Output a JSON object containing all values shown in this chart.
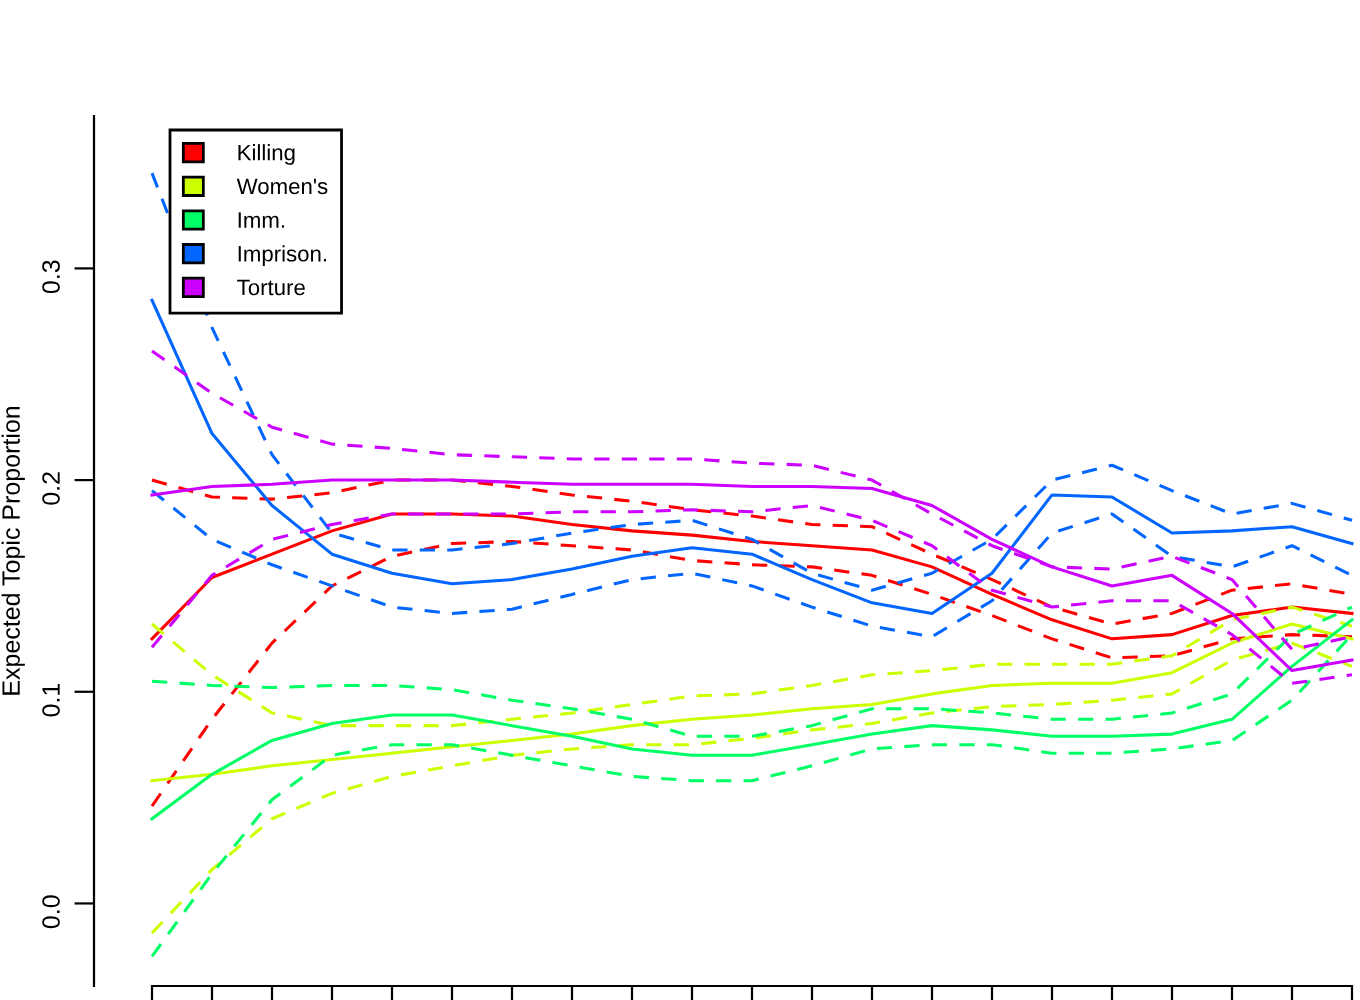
{
  "chart_data": {
    "type": "line",
    "ylabel": "Expected Topic Proportion",
    "categories": [
      null,
      null,
      null,
      null,
      null,
      null,
      null,
      null,
      null,
      null,
      null,
      null,
      null,
      null,
      null,
      null,
      null,
      null,
      null,
      null,
      null
    ],
    "ylim": [
      -0.039,
      0.372
    ],
    "yticks": [
      {
        "value": 0,
        "label": "0.0"
      },
      0.1,
      0.2,
      0.3
    ],
    "tick_labels": "y",
    "legend": "top left",
    "grid": false,
    "line_style": "solid",
    "marker": "none",
    "series": [
      {
        "name": "Killing",
        "color": "#ff0000",
        "values": [
          0.125,
          0.154,
          0.165,
          0.176,
          0.184,
          0.184,
          0.183,
          0.179,
          0.176,
          0.174,
          0.171,
          0.169,
          0.167,
          0.159,
          0.146,
          0.134,
          0.125,
          0.127,
          0.136,
          0.14,
          0.137
        ]
      },
      {
        "color": "#ff0000",
        "line_style": "dashed",
        "values": [
          0.2,
          0.192,
          0.191,
          0.194,
          0.2,
          0.2,
          0.197,
          0.193,
          0.19,
          0.186,
          0.183,
          0.179,
          0.178,
          0.165,
          0.153,
          0.14,
          0.132,
          0.137,
          0.148,
          0.151,
          0.146
        ]
      },
      {
        "color": "#ff0000",
        "line_style": "dashed",
        "values": [
          0.046,
          0.087,
          0.123,
          0.15,
          0.164,
          0.17,
          0.171,
          0.169,
          0.167,
          0.162,
          0.16,
          0.159,
          0.155,
          0.146,
          0.136,
          0.125,
          0.116,
          0.117,
          0.125,
          0.127,
          0.126
        ]
      },
      {
        "name": "Women's",
        "color": "#ccff00",
        "values": [
          0.058,
          0.061,
          0.065,
          0.068,
          0.071,
          0.074,
          0.077,
          0.08,
          0.084,
          0.087,
          0.089,
          0.092,
          0.094,
          0.099,
          0.103,
          0.104,
          0.104,
          0.109,
          0.123,
          0.132,
          0.125
        ]
      },
      {
        "color": "#ccff00",
        "line_style": "dashed",
        "values": [
          0.132,
          0.108,
          0.09,
          0.084,
          0.084,
          0.084,
          0.087,
          0.09,
          0.094,
          0.098,
          0.099,
          0.103,
          0.108,
          0.11,
          0.113,
          0.113,
          0.113,
          0.117,
          0.134,
          0.14,
          0.131
        ]
      },
      {
        "color": "#ccff00",
        "line_style": "dashed",
        "values": [
          -0.014,
          0.016,
          0.04,
          0.052,
          0.06,
          0.065,
          0.07,
          0.073,
          0.075,
          0.075,
          0.078,
          0.082,
          0.085,
          0.09,
          0.093,
          0.094,
          0.096,
          0.099,
          0.115,
          0.123,
          0.112
        ]
      },
      {
        "name": "Imm.",
        "color": "#00ff66",
        "values": [
          0.04,
          0.061,
          0.077,
          0.085,
          0.089,
          0.089,
          0.084,
          0.079,
          0.073,
          0.07,
          0.07,
          0.075,
          0.08,
          0.084,
          0.082,
          0.079,
          0.079,
          0.08,
          0.087,
          0.112,
          0.134
        ]
      },
      {
        "color": "#00ff66",
        "line_style": "dashed",
        "values": [
          0.105,
          0.103,
          0.102,
          0.103,
          0.103,
          0.101,
          0.096,
          0.092,
          0.087,
          0.079,
          0.079,
          0.084,
          0.092,
          0.092,
          0.09,
          0.087,
          0.087,
          0.09,
          0.099,
          0.127,
          0.14
        ]
      },
      {
        "color": "#00ff66",
        "line_style": "dashed",
        "values": [
          -0.025,
          0.014,
          0.049,
          0.07,
          0.075,
          0.075,
          0.07,
          0.065,
          0.06,
          0.058,
          0.058,
          0.065,
          0.073,
          0.075,
          0.075,
          0.071,
          0.071,
          0.073,
          0.077,
          0.096,
          0.127
        ]
      },
      {
        "name": "Imprison.",
        "color": "#0066ff",
        "values": [
          0.285,
          0.222,
          0.188,
          0.165,
          0.156,
          0.151,
          0.153,
          0.158,
          0.164,
          0.168,
          0.165,
          0.153,
          0.142,
          0.137,
          0.156,
          0.193,
          0.192,
          0.175,
          0.176,
          0.178,
          0.17
        ]
      },
      {
        "color": "#0066ff",
        "line_style": "dashed",
        "values": [
          0.345,
          0.272,
          0.212,
          0.175,
          0.167,
          0.167,
          0.17,
          0.175,
          0.179,
          0.181,
          0.172,
          0.156,
          0.148,
          0.156,
          0.172,
          0.2,
          0.207,
          0.195,
          0.184,
          0.189,
          0.181
        ]
      },
      {
        "color": "#0066ff",
        "line_style": "dashed",
        "values": [
          0.195,
          0.172,
          0.16,
          0.15,
          0.14,
          0.137,
          0.139,
          0.146,
          0.153,
          0.156,
          0.15,
          0.14,
          0.131,
          0.126,
          0.143,
          0.175,
          0.184,
          0.164,
          0.159,
          0.169,
          0.155
        ]
      },
      {
        "name": "Torture",
        "color": "#cc00ff",
        "values": [
          0.193,
          0.197,
          0.198,
          0.2,
          0.2,
          0.2,
          0.199,
          0.198,
          0.198,
          0.198,
          0.197,
          0.197,
          0.196,
          0.188,
          0.172,
          0.159,
          0.15,
          0.155,
          0.137,
          0.11,
          0.115
        ]
      },
      {
        "color": "#cc00ff",
        "line_style": "dashed",
        "values": [
          0.261,
          0.241,
          0.225,
          0.217,
          0.215,
          0.212,
          0.211,
          0.21,
          0.21,
          0.21,
          0.208,
          0.207,
          0.2,
          0.184,
          0.169,
          0.159,
          0.158,
          0.164,
          0.153,
          0.12,
          0.126
        ]
      },
      {
        "color": "#cc00ff",
        "line_style": "dashed",
        "values": [
          0.121,
          0.155,
          0.172,
          0.179,
          0.184,
          0.184,
          0.184,
          0.185,
          0.185,
          0.186,
          0.185,
          0.188,
          0.181,
          0.169,
          0.148,
          0.14,
          0.143,
          0.143,
          0.127,
          0.104,
          0.108
        ]
      }
    ]
  }
}
